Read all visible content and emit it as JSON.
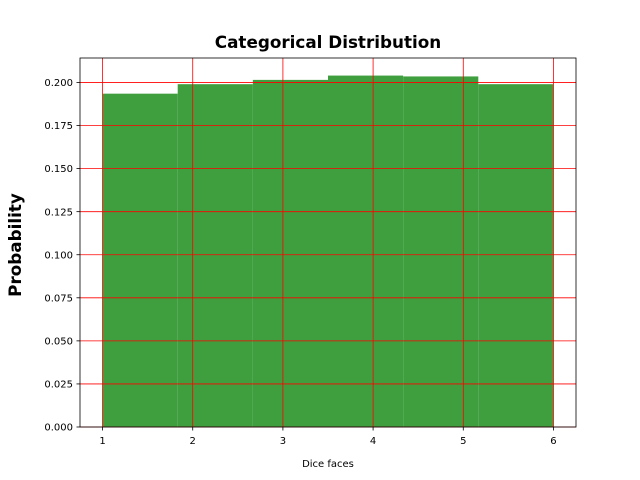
{
  "chart_data": {
    "type": "bar",
    "title": "Categorical Distribution",
    "xlabel": "Dice faces",
    "ylabel": "Probability",
    "bins": [
      {
        "start": 1.0,
        "end": 1.8333,
        "value": 0.1935
      },
      {
        "start": 1.8333,
        "end": 2.6667,
        "value": 0.199
      },
      {
        "start": 2.6667,
        "end": 3.5,
        "value": 0.2015
      },
      {
        "start": 3.5,
        "end": 4.3333,
        "value": 0.204
      },
      {
        "start": 4.3333,
        "end": 5.1667,
        "value": 0.2035
      },
      {
        "start": 5.1667,
        "end": 6.0,
        "value": 0.199
      }
    ],
    "xlim": [
      0.75,
      6.25
    ],
    "ylim": [
      0.0,
      0.2142
    ],
    "xticks": [
      1,
      2,
      3,
      4,
      5,
      6
    ],
    "yticks": [
      0.0,
      0.025,
      0.05,
      0.075,
      0.1,
      0.125,
      0.15,
      0.175,
      0.2
    ],
    "xtick_labels": [
      "1",
      "2",
      "3",
      "4",
      "5",
      "6"
    ],
    "ytick_labels": [
      "0.000",
      "0.025",
      "0.050",
      "0.075",
      "0.100",
      "0.125",
      "0.150",
      "0.175",
      "0.200"
    ],
    "grid": true,
    "colors": {
      "bar": "#3f9f3f",
      "grid": "#ff0000",
      "axes": "#000000"
    }
  }
}
